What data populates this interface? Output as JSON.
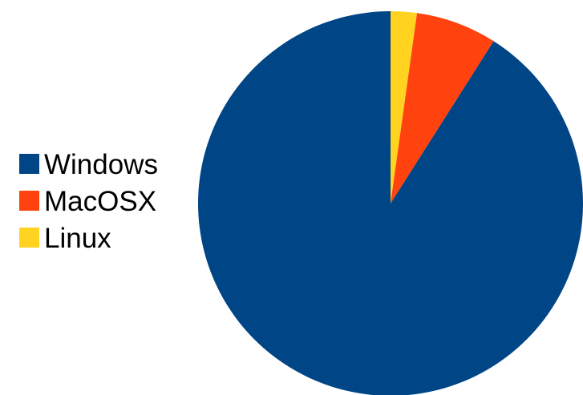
{
  "chart_data": {
    "type": "pie",
    "title": "",
    "categories": [
      "Windows",
      "MacOSX",
      "Linux"
    ],
    "values": [
      91,
      6.8,
      2.2
    ],
    "colors": [
      "#004586",
      "#ff420e",
      "#ffd320"
    ],
    "legend_position": "left",
    "start": "top",
    "direction": "counterclockwise"
  }
}
